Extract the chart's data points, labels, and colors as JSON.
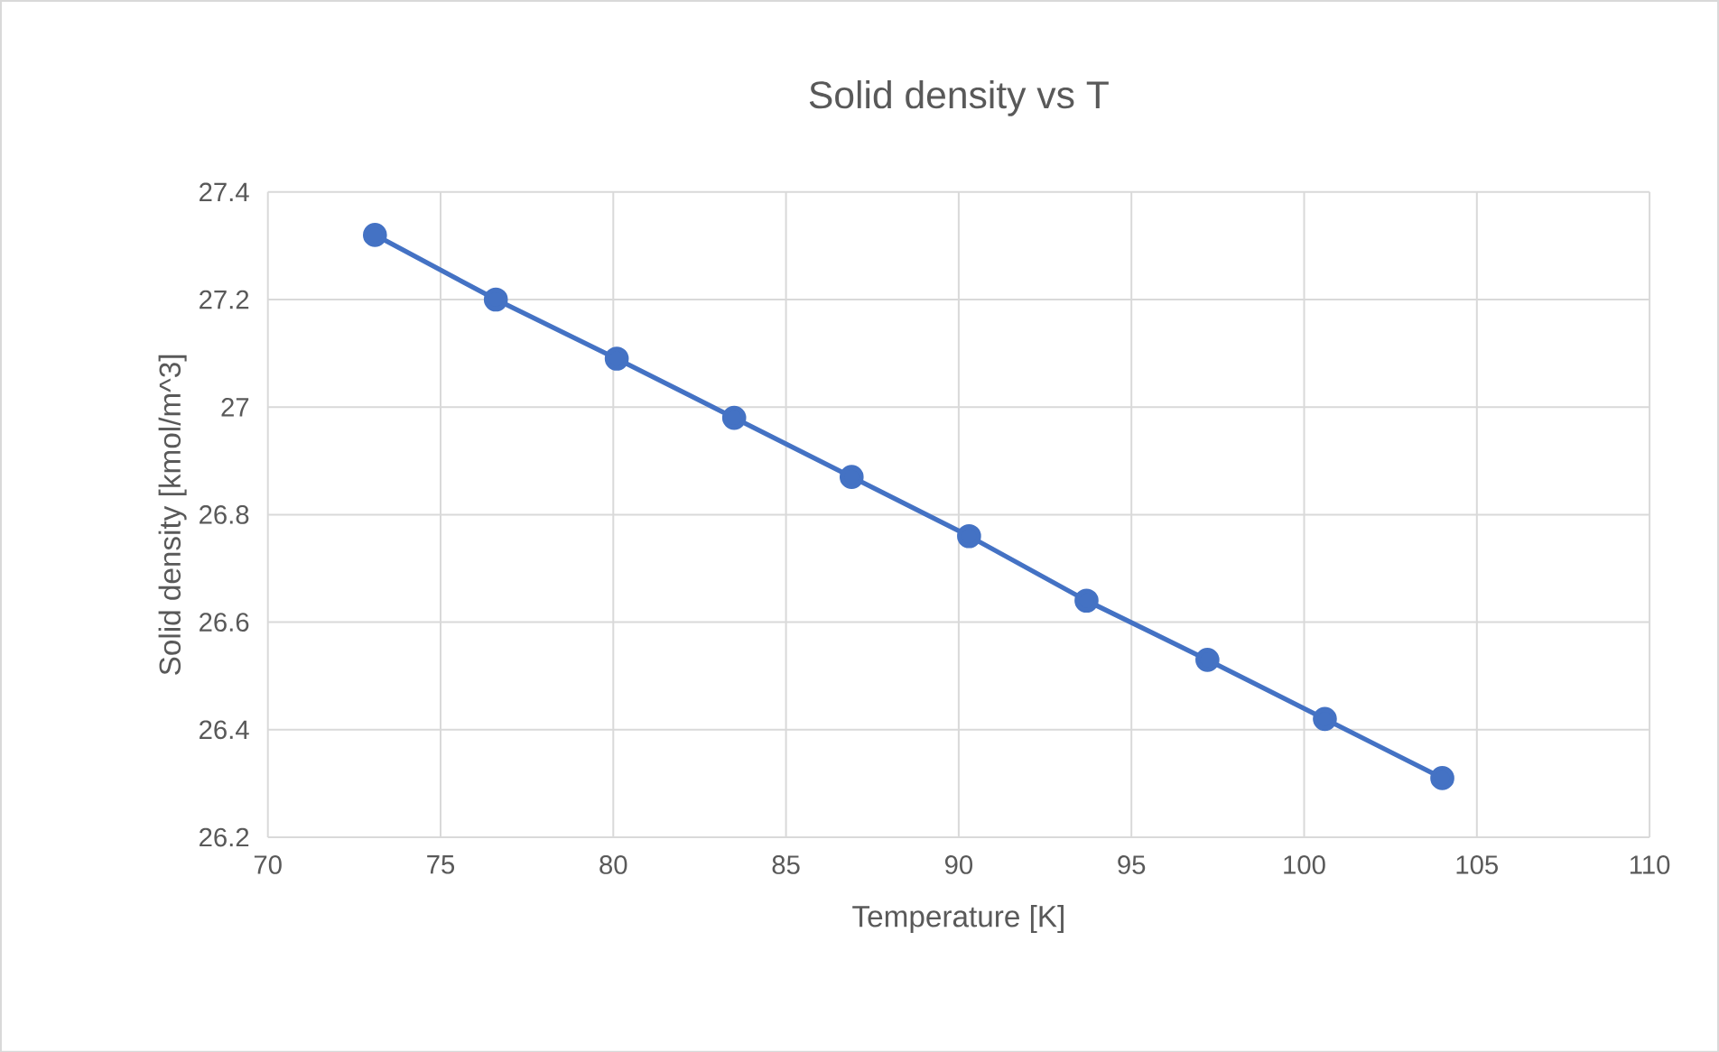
{
  "chart_data": {
    "type": "line",
    "title": "Solid density vs T",
    "xlabel": "Temperature [K]",
    "ylabel": "Solid density [kmol/m^3]",
    "x": [
      73.1,
      76.6,
      80.1,
      83.5,
      86.9,
      90.3,
      93.7,
      97.2,
      100.6,
      104.0
    ],
    "series": [
      {
        "color": "#4472c4",
        "values": [
          27.32,
          27.2,
          27.09,
          26.98,
          26.87,
          26.76,
          26.64,
          26.53,
          26.42,
          26.31
        ]
      }
    ],
    "xlim": [
      70,
      110
    ],
    "xticks": [
      70,
      75,
      80,
      85,
      90,
      95,
      100,
      105,
      110
    ],
    "ylim": [
      26.2,
      27.4
    ],
    "yticks": [
      26.2,
      26.4,
      26.6,
      26.8,
      27,
      27.2,
      27.4
    ],
    "grid": true,
    "marker": "circle",
    "line_style": "solid"
  }
}
